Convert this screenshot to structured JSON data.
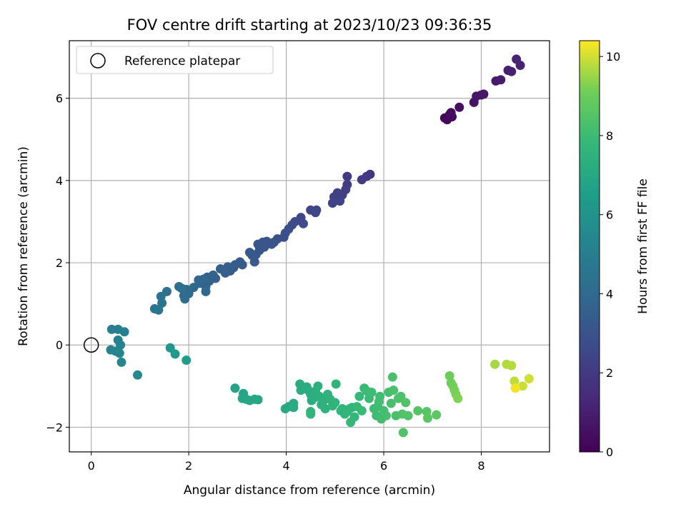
{
  "chart_data": {
    "type": "scatter",
    "title": "FOV centre drift starting at 2023/10/23 09:36:35",
    "xlabel": "Angular distance from reference (arcmin)",
    "ylabel": "Rotation from reference (arcmin)",
    "xlim": [
      -0.45,
      9.4
    ],
    "ylim": [
      -2.6,
      7.4
    ],
    "xticks": [
      0,
      2,
      4,
      6,
      8
    ],
    "yticks": [
      -2,
      0,
      2,
      4,
      6
    ],
    "grid": true,
    "legend": {
      "location": "top-left",
      "entries": [
        "Reference platepar"
      ]
    },
    "reference_point": {
      "x": 0,
      "y": 0
    },
    "colorbar": {
      "label": "Hours from first FF file",
      "colormap": "viridis",
      "range": [
        0,
        10.4
      ],
      "ticks": [
        0,
        2,
        4,
        6,
        8,
        10
      ]
    },
    "points": [
      {
        "x": 7.25,
        "y": 5.52,
        "c": 0.2
      },
      {
        "x": 7.3,
        "y": 5.48,
        "c": 0.25
      },
      {
        "x": 7.35,
        "y": 5.6,
        "c": 0.3
      },
      {
        "x": 7.4,
        "y": 5.55,
        "c": 0.35
      },
      {
        "x": 7.38,
        "y": 5.65,
        "c": 0.4
      },
      {
        "x": 7.55,
        "y": 5.78,
        "c": 0.5
      },
      {
        "x": 7.85,
        "y": 5.9,
        "c": 0.6
      },
      {
        "x": 7.9,
        "y": 6.05,
        "c": 0.65
      },
      {
        "x": 8.0,
        "y": 6.08,
        "c": 0.7
      },
      {
        "x": 8.05,
        "y": 6.1,
        "c": 0.75
      },
      {
        "x": 8.3,
        "y": 6.42,
        "c": 0.85
      },
      {
        "x": 8.4,
        "y": 6.45,
        "c": 0.9
      },
      {
        "x": 8.55,
        "y": 6.68,
        "c": 1.0
      },
      {
        "x": 8.62,
        "y": 6.65,
        "c": 1.05
      },
      {
        "x": 8.72,
        "y": 6.95,
        "c": 1.1
      },
      {
        "x": 8.8,
        "y": 6.8,
        "c": 1.15
      },
      {
        "x": 5.72,
        "y": 4.15,
        "c": 1.9
      },
      {
        "x": 5.65,
        "y": 4.1,
        "c": 1.95
      },
      {
        "x": 5.55,
        "y": 4.02,
        "c": 2.0
      },
      {
        "x": 5.25,
        "y": 4.1,
        "c": 2.05
      },
      {
        "x": 5.25,
        "y": 3.9,
        "c": 2.1
      },
      {
        "x": 5.22,
        "y": 3.78,
        "c": 2.15
      },
      {
        "x": 5.15,
        "y": 3.65,
        "c": 2.2
      },
      {
        "x": 5.05,
        "y": 3.7,
        "c": 2.25
      },
      {
        "x": 4.98,
        "y": 3.6,
        "c": 2.3
      },
      {
        "x": 5.1,
        "y": 3.5,
        "c": 2.35
      },
      {
        "x": 4.95,
        "y": 3.45,
        "c": 2.4
      },
      {
        "x": 4.62,
        "y": 3.28,
        "c": 2.45
      },
      {
        "x": 4.5,
        "y": 3.28,
        "c": 2.5
      },
      {
        "x": 4.6,
        "y": 3.22,
        "c": 2.55
      },
      {
        "x": 4.3,
        "y": 3.1,
        "c": 2.6
      },
      {
        "x": 4.35,
        "y": 2.95,
        "c": 2.65
      },
      {
        "x": 4.18,
        "y": 3.0,
        "c": 2.7
      },
      {
        "x": 4.12,
        "y": 2.92,
        "c": 2.75
      },
      {
        "x": 4.05,
        "y": 2.82,
        "c": 2.8
      },
      {
        "x": 3.98,
        "y": 2.72,
        "c": 2.85
      },
      {
        "x": 3.95,
        "y": 2.62,
        "c": 2.9
      },
      {
        "x": 3.82,
        "y": 2.58,
        "c": 2.95
      },
      {
        "x": 3.75,
        "y": 2.5,
        "c": 3.0
      },
      {
        "x": 3.7,
        "y": 2.45,
        "c": 3.0
      },
      {
        "x": 3.6,
        "y": 2.52,
        "c": 3.05
      },
      {
        "x": 3.52,
        "y": 2.5,
        "c": 3.1
      },
      {
        "x": 3.55,
        "y": 2.38,
        "c": 3.1
      },
      {
        "x": 3.45,
        "y": 2.3,
        "c": 3.15
      },
      {
        "x": 3.42,
        "y": 2.45,
        "c": 3.15
      },
      {
        "x": 3.38,
        "y": 2.2,
        "c": 3.2
      },
      {
        "x": 3.3,
        "y": 2.18,
        "c": 3.2
      },
      {
        "x": 3.35,
        "y": 2.02,
        "c": 3.25
      },
      {
        "x": 3.25,
        "y": 2.25,
        "c": 3.3
      },
      {
        "x": 3.1,
        "y": 1.95,
        "c": 3.35
      },
      {
        "x": 3.05,
        "y": 2.02,
        "c": 3.35
      },
      {
        "x": 2.95,
        "y": 1.95,
        "c": 3.4
      },
      {
        "x": 2.92,
        "y": 1.88,
        "c": 3.4
      },
      {
        "x": 2.85,
        "y": 1.8,
        "c": 3.45
      },
      {
        "x": 2.8,
        "y": 1.9,
        "c": 3.5
      },
      {
        "x": 2.75,
        "y": 1.75,
        "c": 3.5
      },
      {
        "x": 2.65,
        "y": 1.85,
        "c": 3.55
      },
      {
        "x": 2.55,
        "y": 1.62,
        "c": 3.6
      },
      {
        "x": 2.5,
        "y": 1.7,
        "c": 3.65
      },
      {
        "x": 2.42,
        "y": 1.55,
        "c": 3.7
      },
      {
        "x": 2.38,
        "y": 1.65,
        "c": 3.7
      },
      {
        "x": 2.35,
        "y": 1.42,
        "c": 3.75
      },
      {
        "x": 2.3,
        "y": 1.6,
        "c": 3.8
      },
      {
        "x": 2.22,
        "y": 1.5,
        "c": 3.8
      },
      {
        "x": 2.2,
        "y": 1.58,
        "c": 3.85
      },
      {
        "x": 2.35,
        "y": 1.3,
        "c": 3.9
      },
      {
        "x": 2.1,
        "y": 1.4,
        "c": 3.95
      },
      {
        "x": 2.0,
        "y": 1.25,
        "c": 4.0
      },
      {
        "x": 1.95,
        "y": 1.35,
        "c": 4.05
      },
      {
        "x": 1.9,
        "y": 1.2,
        "c": 4.1
      },
      {
        "x": 1.92,
        "y": 1.12,
        "c": 4.15
      },
      {
        "x": 1.85,
        "y": 1.38,
        "c": 4.2
      },
      {
        "x": 1.8,
        "y": 1.42,
        "c": 4.25
      },
      {
        "x": 1.55,
        "y": 1.3,
        "c": 4.35
      },
      {
        "x": 1.45,
        "y": 1.02,
        "c": 4.45
      },
      {
        "x": 1.43,
        "y": 1.18,
        "c": 4.5
      },
      {
        "x": 1.38,
        "y": 0.85,
        "c": 4.55
      },
      {
        "x": 1.3,
        "y": 0.88,
        "c": 4.6
      },
      {
        "x": 0.42,
        "y": 0.38,
        "c": 5.0
      },
      {
        "x": 0.55,
        "y": 0.38,
        "c": 5.05
      },
      {
        "x": 0.68,
        "y": 0.32,
        "c": 5.1
      },
      {
        "x": 0.55,
        "y": 0.12,
        "c": 5.15
      },
      {
        "x": 0.6,
        "y": 0.0,
        "c": 5.2
      },
      {
        "x": 0.4,
        "y": -0.12,
        "c": 5.25
      },
      {
        "x": 0.5,
        "y": -0.15,
        "c": 5.3
      },
      {
        "x": 0.58,
        "y": -0.2,
        "c": 5.35
      },
      {
        "x": 0.62,
        "y": -0.42,
        "c": 5.4
      },
      {
        "x": 0.95,
        "y": -0.73,
        "c": 5.5
      },
      {
        "x": 1.62,
        "y": -0.07,
        "c": 6.2
      },
      {
        "x": 1.72,
        "y": -0.22,
        "c": 6.3
      },
      {
        "x": 1.95,
        "y": -0.37,
        "c": 6.4
      },
      {
        "x": 2.95,
        "y": -1.05,
        "c": 6.8
      },
      {
        "x": 3.12,
        "y": -1.18,
        "c": 6.85
      },
      {
        "x": 3.18,
        "y": -1.32,
        "c": 6.9
      },
      {
        "x": 3.1,
        "y": -1.3,
        "c": 6.9
      },
      {
        "x": 3.25,
        "y": -1.35,
        "c": 6.95
      },
      {
        "x": 3.35,
        "y": -1.32,
        "c": 7.0
      },
      {
        "x": 3.42,
        "y": -1.33,
        "c": 7.0
      },
      {
        "x": 3.98,
        "y": -1.55,
        "c": 7.05
      },
      {
        "x": 4.05,
        "y": -1.5,
        "c": 7.1
      },
      {
        "x": 4.15,
        "y": -1.52,
        "c": 7.1
      },
      {
        "x": 4.15,
        "y": -1.42,
        "c": 7.15
      },
      {
        "x": 4.28,
        "y": -0.95,
        "c": 7.2
      },
      {
        "x": 4.3,
        "y": -1.1,
        "c": 7.2
      },
      {
        "x": 4.42,
        "y": -1.02,
        "c": 7.25
      },
      {
        "x": 4.45,
        "y": -1.1,
        "c": 7.25
      },
      {
        "x": 4.5,
        "y": -1.2,
        "c": 7.3
      },
      {
        "x": 4.52,
        "y": -1.35,
        "c": 7.3
      },
      {
        "x": 4.58,
        "y": -1.28,
        "c": 7.35
      },
      {
        "x": 4.6,
        "y": -1.12,
        "c": 7.35
      },
      {
        "x": 4.65,
        "y": -1.0,
        "c": 7.4
      },
      {
        "x": 4.68,
        "y": -1.25,
        "c": 7.4
      },
      {
        "x": 4.72,
        "y": -1.45,
        "c": 7.45
      },
      {
        "x": 4.75,
        "y": -1.38,
        "c": 7.45
      },
      {
        "x": 4.8,
        "y": -1.55,
        "c": 7.5
      },
      {
        "x": 4.85,
        "y": -1.2,
        "c": 7.5
      },
      {
        "x": 4.9,
        "y": -1.32,
        "c": 7.55
      },
      {
        "x": 4.95,
        "y": -1.48,
        "c": 7.55
      },
      {
        "x": 5.0,
        "y": -1.4,
        "c": 7.6
      },
      {
        "x": 5.02,
        "y": -0.95,
        "c": 7.6
      },
      {
        "x": 4.5,
        "y": -1.62,
        "c": 7.6
      },
      {
        "x": 4.5,
        "y": -1.68,
        "c": 7.62
      },
      {
        "x": 5.12,
        "y": -1.6,
        "c": 7.65
      },
      {
        "x": 5.15,
        "y": -1.55,
        "c": 7.65
      },
      {
        "x": 5.2,
        "y": -1.68,
        "c": 7.7
      },
      {
        "x": 5.25,
        "y": -1.62,
        "c": 7.7
      },
      {
        "x": 5.3,
        "y": -1.55,
        "c": 7.75
      },
      {
        "x": 5.35,
        "y": -1.52,
        "c": 7.75
      },
      {
        "x": 5.32,
        "y": -1.88,
        "c": 7.8
      },
      {
        "x": 5.4,
        "y": -1.75,
        "c": 7.8
      },
      {
        "x": 5.45,
        "y": -1.5,
        "c": 7.85
      },
      {
        "x": 5.5,
        "y": -1.25,
        "c": 7.85
      },
      {
        "x": 5.55,
        "y": -1.6,
        "c": 7.9
      },
      {
        "x": 5.6,
        "y": -1.05,
        "c": 7.9
      },
      {
        "x": 5.65,
        "y": -1.12,
        "c": 7.95
      },
      {
        "x": 5.7,
        "y": -1.3,
        "c": 7.95
      },
      {
        "x": 5.75,
        "y": -1.15,
        "c": 8.0
      },
      {
        "x": 5.8,
        "y": -1.55,
        "c": 8.0
      },
      {
        "x": 5.85,
        "y": -1.72,
        "c": 8.05
      },
      {
        "x": 5.88,
        "y": -1.5,
        "c": 8.05
      },
      {
        "x": 5.9,
        "y": -1.38,
        "c": 8.1
      },
      {
        "x": 5.92,
        "y": -1.25,
        "c": 8.1
      },
      {
        "x": 5.95,
        "y": -1.8,
        "c": 8.15
      },
      {
        "x": 6.0,
        "y": -1.6,
        "c": 8.15
      },
      {
        "x": 6.05,
        "y": -1.72,
        "c": 8.2
      },
      {
        "x": 6.1,
        "y": -1.15,
        "c": 8.2
      },
      {
        "x": 6.15,
        "y": -1.42,
        "c": 8.25
      },
      {
        "x": 6.18,
        "y": -0.78,
        "c": 8.25
      },
      {
        "x": 6.2,
        "y": -1.1,
        "c": 8.3
      },
      {
        "x": 6.25,
        "y": -1.72,
        "c": 8.3
      },
      {
        "x": 6.3,
        "y": -1.3,
        "c": 8.35
      },
      {
        "x": 6.35,
        "y": -1.25,
        "c": 8.35
      },
      {
        "x": 6.38,
        "y": -1.68,
        "c": 8.4
      },
      {
        "x": 6.4,
        "y": -2.13,
        "c": 8.4
      },
      {
        "x": 6.45,
        "y": -1.4,
        "c": 8.45
      },
      {
        "x": 6.5,
        "y": -1.72,
        "c": 8.5
      },
      {
        "x": 6.7,
        "y": -1.6,
        "c": 8.55
      },
      {
        "x": 6.88,
        "y": -1.62,
        "c": 8.6
      },
      {
        "x": 6.9,
        "y": -1.78,
        "c": 8.65
      },
      {
        "x": 7.08,
        "y": -1.7,
        "c": 8.7
      },
      {
        "x": 7.35,
        "y": -0.75,
        "c": 9.0
      },
      {
        "x": 7.38,
        "y": -0.92,
        "c": 9.05
      },
      {
        "x": 7.42,
        "y": -1.0,
        "c": 9.1
      },
      {
        "x": 7.45,
        "y": -1.1,
        "c": 9.15
      },
      {
        "x": 7.48,
        "y": -1.2,
        "c": 9.2
      },
      {
        "x": 7.52,
        "y": -1.3,
        "c": 9.25
      },
      {
        "x": 8.28,
        "y": -0.47,
        "c": 9.6
      },
      {
        "x": 8.52,
        "y": -0.47,
        "c": 9.7
      },
      {
        "x": 8.62,
        "y": -0.5,
        "c": 9.75
      },
      {
        "x": 8.68,
        "y": -0.88,
        "c": 9.85
      },
      {
        "x": 8.85,
        "y": -1.0,
        "c": 9.95
      },
      {
        "x": 8.98,
        "y": -0.82,
        "c": 10.0
      },
      {
        "x": 8.7,
        "y": -1.05,
        "c": 10.3
      }
    ]
  }
}
